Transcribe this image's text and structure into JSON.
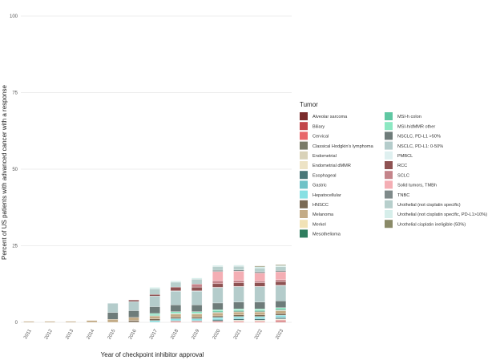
{
  "chart_data": {
    "type": "bar",
    "stacked": true,
    "xlabel": "Year of checkpoint inhibitor approval",
    "ylabel": "Percent of US patients with advanced cancer with a response",
    "ylim": [
      0,
      100
    ],
    "yticks": [
      0,
      25,
      50,
      75,
      100
    ],
    "grid": true,
    "legend_title": "Tumor",
    "legend_position": "right",
    "categories": [
      "2011",
      "2012",
      "2013",
      "2014",
      "2015",
      "2016",
      "2017",
      "2018",
      "2019",
      "2020",
      "2021",
      "2022",
      "2023"
    ],
    "series": [
      {
        "name": "Alveolar sarcoma",
        "color": "#7a2b2b",
        "values": [
          0,
          0,
          0,
          0,
          0,
          0,
          0,
          0,
          0,
          0,
          0,
          0,
          0.1
        ]
      },
      {
        "name": "Biliary",
        "color": "#c2464a",
        "values": [
          0,
          0,
          0,
          0,
          0,
          0,
          0,
          0,
          0,
          0,
          0,
          0,
          0.3
        ]
      },
      {
        "name": "Cervical",
        "color": "#e8676a",
        "values": [
          0,
          0,
          0,
          0,
          0,
          0,
          0,
          0.3,
          0.3,
          0.3,
          0.3,
          0.3,
          0.3
        ]
      },
      {
        "name": "Classical Hodgkin's lymphoma",
        "color": "#7b7b68",
        "values": [
          0,
          0,
          0,
          0,
          0,
          0.1,
          0.1,
          0.1,
          0.1,
          0.1,
          0.1,
          0.1,
          0.1
        ]
      },
      {
        "name": "Endometrial",
        "color": "#d9d2b8",
        "values": [
          0,
          0,
          0,
          0,
          0,
          0,
          0,
          0,
          0,
          0,
          0.1,
          0.1,
          0.1
        ]
      },
      {
        "name": "Endometrial dMMR",
        "color": "#ede3c5",
        "values": [
          0,
          0,
          0,
          0,
          0,
          0,
          0,
          0,
          0,
          0,
          0.2,
          0.2,
          0.2
        ]
      },
      {
        "name": "Esophageal",
        "color": "#4a7778",
        "values": [
          0,
          0,
          0,
          0,
          0,
          0,
          0,
          0,
          0,
          0.4,
          0.4,
          0.4,
          0.4
        ]
      },
      {
        "name": "Gastric",
        "color": "#6fc2c7",
        "values": [
          0,
          0,
          0,
          0,
          0,
          0,
          0,
          0.3,
          0.3,
          0.3,
          0.3,
          0.3,
          0.3
        ]
      },
      {
        "name": "Hepatocellular",
        "color": "#86e0e3",
        "values": [
          0,
          0,
          0,
          0,
          0,
          0,
          0.5,
          0.5,
          0.5,
          0.5,
          0.5,
          0.5,
          0.5
        ]
      },
      {
        "name": "HNSCC",
        "color": "#7a6a55",
        "values": [
          0,
          0,
          0,
          0,
          0,
          0.5,
          0.5,
          0.5,
          0.5,
          0.5,
          0.5,
          0.5,
          0.5
        ]
      },
      {
        "name": "Melanoma",
        "color": "#c3ab86",
        "values": [
          0.3,
          0.3,
          0.3,
          0.6,
          1.0,
          1.0,
          1.0,
          1.0,
          1.0,
          1.0,
          1.0,
          1.0,
          1.0
        ]
      },
      {
        "name": "Merkel",
        "color": "#f1e2b6",
        "values": [
          0,
          0,
          0,
          0,
          0,
          0,
          0.1,
          0.1,
          0.1,
          0.1,
          0.1,
          0.1,
          0.1
        ]
      },
      {
        "name": "Mesothelioma",
        "color": "#2f7d5e",
        "values": [
          0,
          0,
          0,
          0,
          0,
          0,
          0,
          0,
          0,
          0.2,
          0.2,
          0.2,
          0.2
        ]
      },
      {
        "name": "MSI-h colon",
        "color": "#5fc7a2",
        "values": [
          0,
          0,
          0,
          0,
          0,
          0,
          0.3,
          0.3,
          0.3,
          0.3,
          0.3,
          0.3,
          0.3
        ]
      },
      {
        "name": "MSI-h/dMMR other",
        "color": "#8ce8c2",
        "values": [
          0,
          0,
          0,
          0,
          0,
          0,
          0.4,
          0.4,
          0.4,
          0.4,
          0.4,
          0.4,
          0.4
        ]
      },
      {
        "name": "NSCLC, PD-L1 >50%",
        "color": "#6e7c7a",
        "values": [
          0,
          0,
          0,
          0,
          2.2,
          2.2,
          2.2,
          2.2,
          2.2,
          2.2,
          2.2,
          2.2,
          2.2
        ]
      },
      {
        "name": "NSCLC, PD-L1: 0-50%",
        "color": "#b4cccb",
        "values": [
          0,
          0,
          0,
          0,
          3.0,
          3.0,
          3.5,
          4.5,
          4.5,
          5.0,
          5.0,
          5.0,
          5.0
        ]
      },
      {
        "name": "PMBCL",
        "color": "#dff0f0",
        "values": [
          0,
          0,
          0,
          0,
          0,
          0,
          0,
          0.1,
          0.1,
          0.1,
          0.1,
          0.1,
          0.1
        ]
      },
      {
        "name": "RCC",
        "color": "#8e5252",
        "values": [
          0,
          0,
          0,
          0,
          0,
          0.5,
          0.5,
          1.2,
          1.2,
          1.2,
          1.2,
          1.2,
          1.2
        ]
      },
      {
        "name": "SCLC",
        "color": "#c4848a",
        "values": [
          0,
          0,
          0,
          0,
          0,
          0,
          0,
          0,
          1.0,
          1.0,
          0.8,
          0.6,
          0.6
        ]
      },
      {
        "name": "Solid tumors, TMBh",
        "color": "#f4aeb4",
        "values": [
          0,
          0,
          0,
          0,
          0,
          0,
          0,
          0,
          0,
          3.0,
          3.0,
          2.6,
          2.6
        ]
      },
      {
        "name": "TNBC",
        "color": "#7f8a8a",
        "values": [
          0,
          0,
          0,
          0,
          0,
          0,
          0,
          0,
          0,
          0.4,
          0.4,
          0.4,
          0.4
        ]
      },
      {
        "name": "Urothelial (not cisplatin specific)",
        "color": "#b7cfcc",
        "values": [
          0,
          0,
          0,
          0,
          0,
          0,
          1.8,
          1.6,
          1.6,
          1.2,
          1.2,
          1.2,
          1.2
        ]
      },
      {
        "name": "Urothelial (not cisplatin specific, PD-L1>10%)",
        "color": "#d6eeea",
        "values": [
          0,
          0,
          0,
          0,
          0,
          0,
          0.5,
          0.4,
          0.4,
          0.4,
          0.4,
          0.4,
          0.4
        ]
      },
      {
        "name": "Urothelial cisplatin ineligible (50%)",
        "color": "#8a8a68",
        "values": [
          0,
          0,
          0,
          0,
          0,
          0,
          0,
          0,
          0,
          0,
          0,
          0.3,
          0.3
        ]
      }
    ]
  }
}
